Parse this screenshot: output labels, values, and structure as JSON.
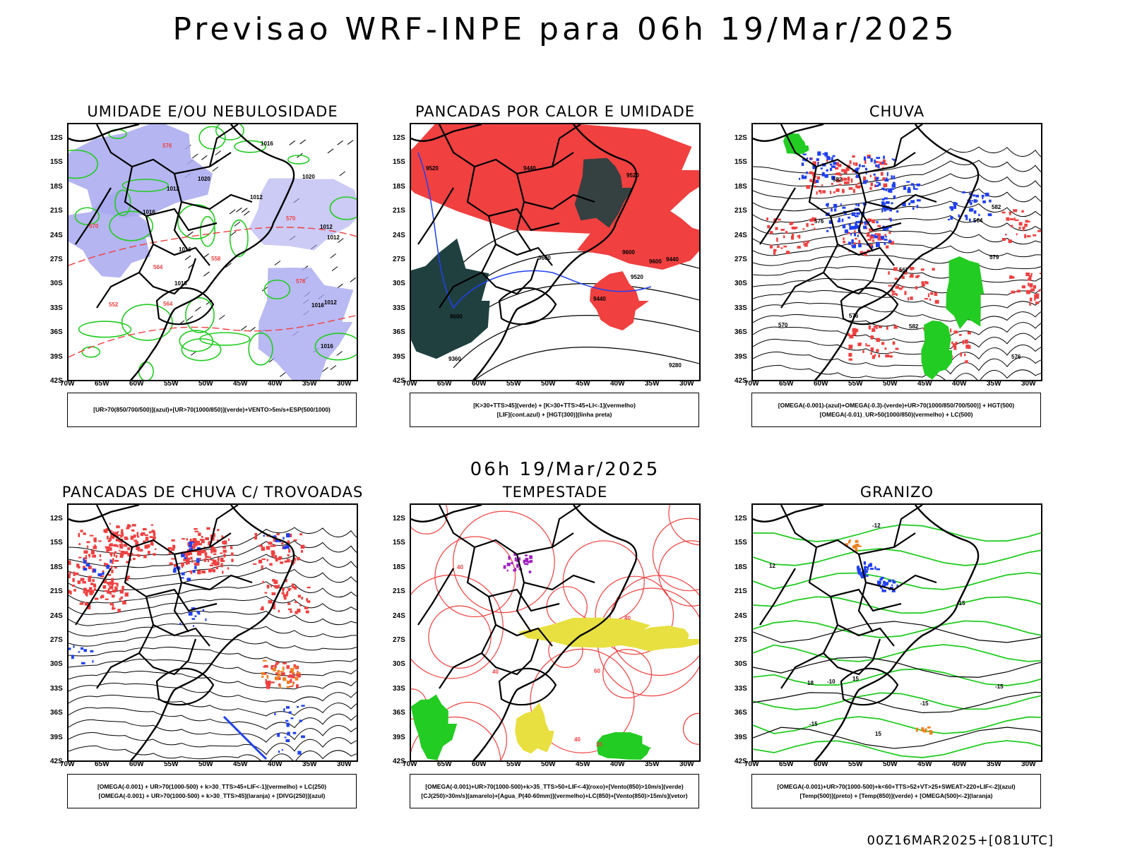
{
  "title": "Previsao WRF-INPE  para 06h 19/Mar/2025",
  "mid_title": "06h 19/Mar/2025",
  "footer": "00Z16MAR2025+[081UTC]",
  "axes": {
    "lat_labels": [
      "12S",
      "15S",
      "18S",
      "21S",
      "24S",
      "27S",
      "30S",
      "33S",
      "36S",
      "39S",
      "42S"
    ],
    "lon_labels": [
      "70W",
      "65W",
      "60W",
      "55W",
      "50W",
      "45W",
      "40W",
      "35W",
      "30W"
    ]
  },
  "colors": {
    "blue_fill": "#a8a8f0",
    "green": "#22cc22",
    "red": "#f04040",
    "blue": "#2040f0",
    "dark_teal": "#204040",
    "yellow": "#e8e040",
    "orange": "#f08020",
    "purple": "#a020c0"
  },
  "panels": [
    {
      "title": "UMIDADE E/OU NEBULOSIDADE",
      "legend": [
        "[UR>70(850/700/500)](azul)+[UR>70(1000/850)](verde)+VENTO>5m/s+ESP(500/1000)"
      ],
      "labels": [
        "1012",
        "1012",
        "1012",
        "1012",
        "1016",
        "1012",
        "1016",
        "1016",
        "1016",
        "1020",
        "1016",
        "576",
        "570",
        "564",
        "552",
        "558",
        "564",
        "570",
        "576",
        "1020",
        "1016"
      ]
    },
    {
      "title": "PANCADAS POR CALOR E UMIDADE",
      "legend": [
        "[K>30+TTS>45](verde) + [K>30+TTS>45+LI<-1](vermelho)",
        "[LIF](cont.azul) + [HGT(300)](linha preta)"
      ],
      "labels": [
        "9600",
        "9600",
        "9520",
        "9520",
        "9440",
        "9600",
        "9600",
        "9520",
        "9440",
        "9360",
        "9280",
        "9440"
      ]
    },
    {
      "title": "CHUVA",
      "legend": [
        "[OMEGA(-0.001)-(azul)+OMEGA(-0.3)-(verde)+UR>70(1000/850/700/500)] + HGT(500)",
        "[OMEGA(-0.01)_UR>50(1000/850)(vermelho) + LC(500)"
      ],
      "labels": [
        "582",
        "582",
        "576",
        "570",
        "567",
        "564",
        "576",
        "582",
        "579",
        "576"
      ]
    },
    {
      "title": "PANCADAS DE CHUVA C/ TROVOADAS",
      "legend": [
        "[OMEGA(-0.001) + UR>70(1000-500) + k>30_TTS>45+LIF<-1](vermelho) + LC(250)",
        "[OMEGA(-0.001) + UR>70(1000-500) + k>30_TTS>45](laranja) + [DIVG(250)](azul)"
      ],
      "labels": []
    },
    {
      "title": "TEMPESTADE",
      "legend": [
        "[OMEGA(-0.001)+UR>70(1000-500)+k>35_TTS>50+LIF<-4](roxo)+[Vento(850)>10m/s](verde)",
        "[CJ(250)>30m/s](amarelo)+[Agua_P(40-60mm)](vermelho)+LC(850)+[Vento(850)>15m/s](vetor)"
      ],
      "labels": [
        "40",
        "40",
        "40",
        "40",
        "60",
        "20"
      ]
    },
    {
      "title": "GRANIZO",
      "legend": [
        "[OMEGA(-0.001)+UR>70(1000-500)+k<60+TTS>52+VT>25+SWEAT>220+LIF<-2](azul)",
        "[Temp(500)](preto) + [Temp(850)](verde) + [OMEGA(500)<-2](laranja)"
      ],
      "labels": [
        "-15",
        "-15",
        "-12",
        "-15",
        "-10",
        "-15",
        "15",
        "18",
        "15",
        "12"
      ]
    }
  ]
}
